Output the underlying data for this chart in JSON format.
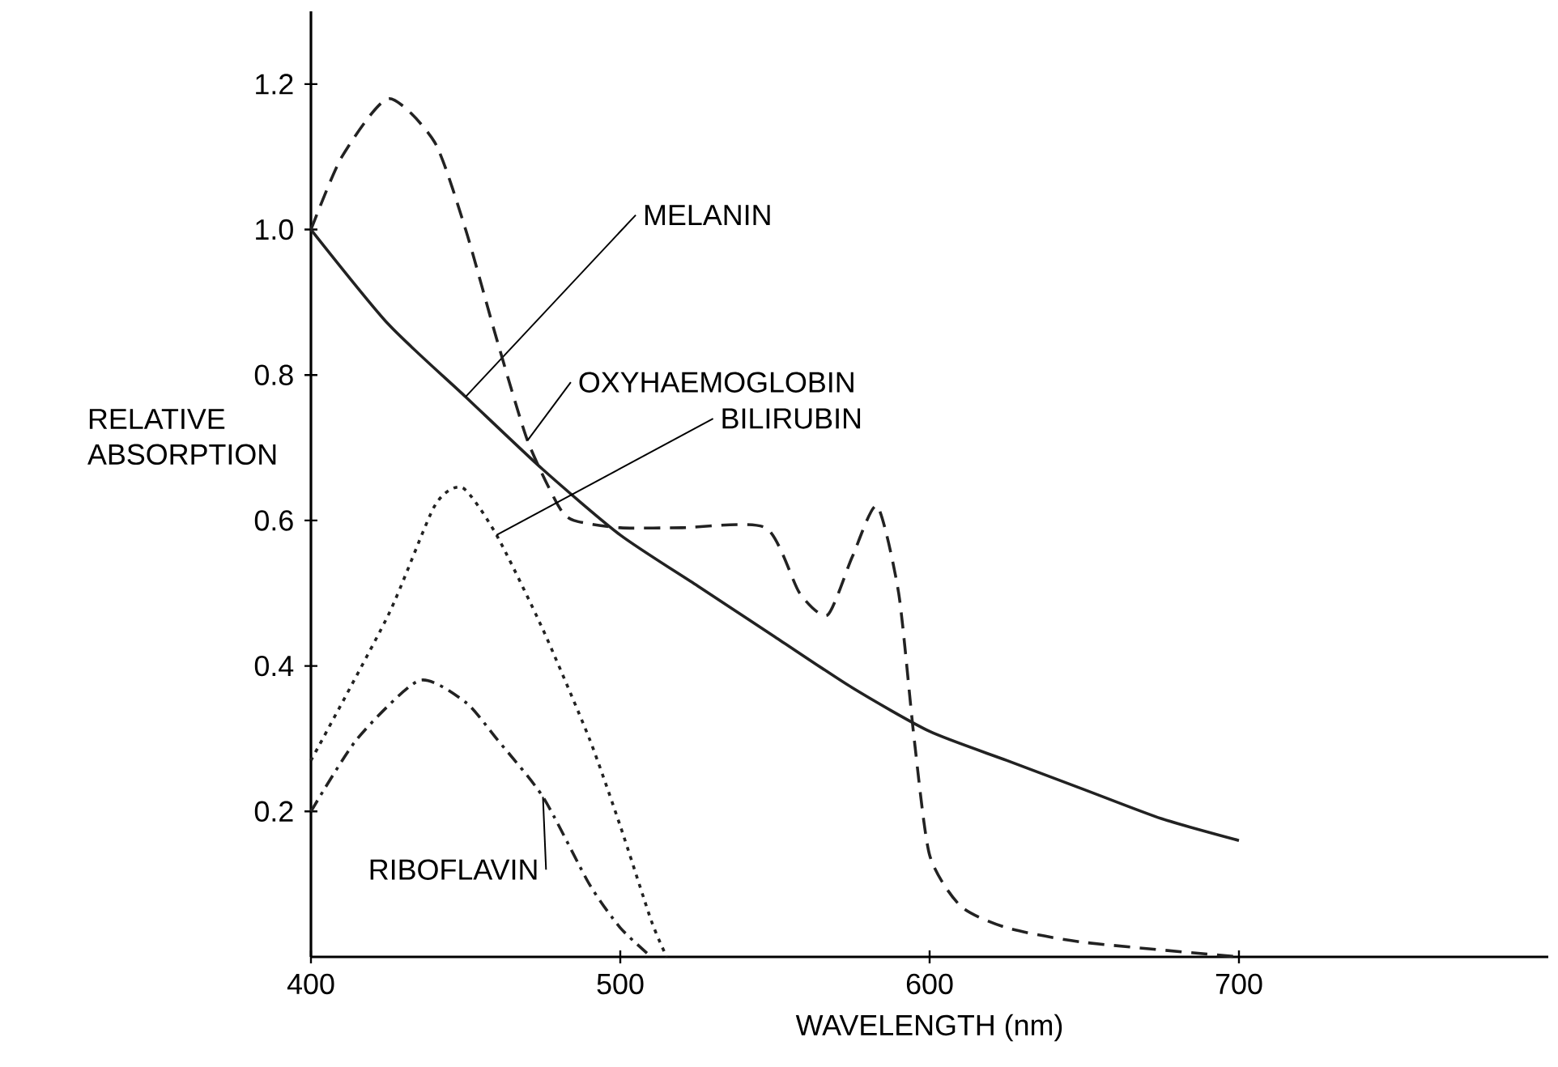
{
  "chart_data": {
    "type": "line",
    "xlabel": "WAVELENGTH (nm)",
    "ylabel": "RELATIVE ABSORPTION",
    "xlim": [
      400,
      800
    ],
    "xticks": [
      400,
      500,
      600,
      700
    ],
    "ylim": [
      0,
      1.3
    ],
    "yticks": [
      0.2,
      0.4,
      0.6,
      0.8,
      {
        "value": 1.0,
        "label": "1.0"
      },
      1.2
    ],
    "grid": false,
    "legend": false,
    "marker": "none",
    "series": [
      {
        "name": "MELANIN",
        "color": "#222222",
        "line_style": "solid",
        "x": [
          400,
          425,
          450,
          475,
          500,
          525,
          550,
          575,
          600,
          625,
          650,
          675,
          700
        ],
        "values": [
          1.0,
          0.87,
          0.77,
          0.67,
          0.58,
          0.51,
          0.44,
          0.37,
          0.31,
          0.27,
          0.23,
          0.19,
          0.16
        ]
      },
      {
        "name": "OXYHAEMOGLOBIN",
        "color": "#222222",
        "line_style": "dashed",
        "x": [
          400,
          410,
          425,
          440,
          450,
          460,
          470,
          480,
          485,
          500,
          520,
          547,
          558,
          567,
          575,
          583,
          590,
          595,
          600,
          610,
          625,
          650,
          700
        ],
        "values": [
          1.0,
          1.1,
          1.18,
          1.12,
          1.0,
          0.85,
          0.71,
          0.62,
          0.6,
          0.59,
          0.59,
          0.59,
          0.5,
          0.47,
          0.55,
          0.62,
          0.5,
          0.3,
          0.14,
          0.07,
          0.04,
          0.02,
          0.0
        ]
      },
      {
        "name": "BILIRUBIN",
        "color": "#222222",
        "line_style": "dotted",
        "x": [
          400,
          425,
          440,
          449,
          460,
          475,
          490,
          500,
          510,
          515
        ],
        "values": [
          0.27,
          0.47,
          0.62,
          0.645,
          0.58,
          0.45,
          0.3,
          0.18,
          0.05,
          0.0
        ]
      },
      {
        "name": "RIBOFLAVIN",
        "color": "#222222",
        "line_style": "dashdot",
        "x": [
          400,
          415,
          435,
          450,
          460,
          475,
          490,
          500,
          510
        ],
        "values": [
          0.2,
          0.3,
          0.38,
          0.35,
          0.3,
          0.22,
          0.1,
          0.04,
          0.0
        ]
      }
    ]
  }
}
